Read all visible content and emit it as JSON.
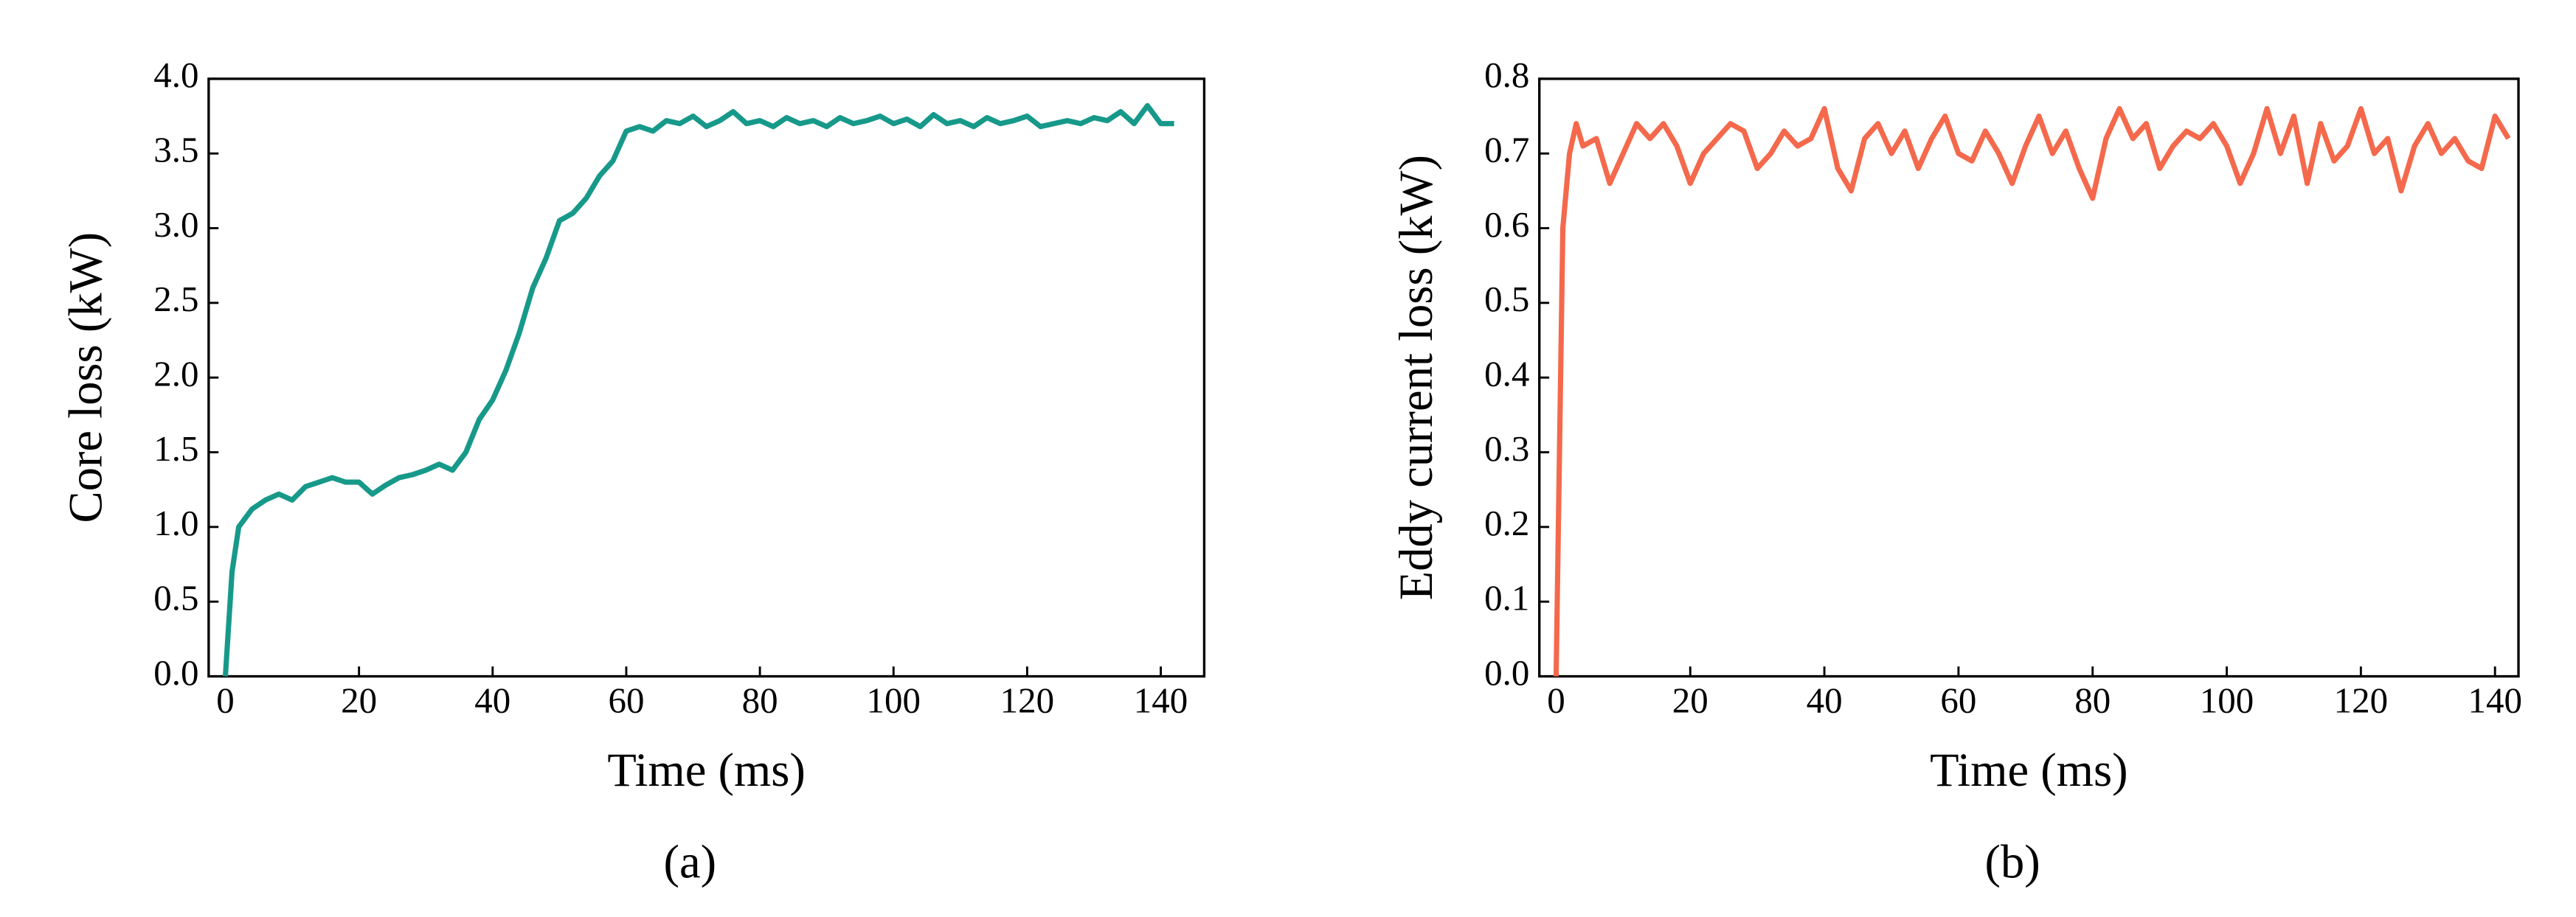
{
  "chart_data": [
    {
      "type": "line",
      "x_label": "Time (ms)",
      "y_label": "Core loss (kW)",
      "caption": "(a)",
      "color": "#17998a",
      "xlim": [
        -2.5,
        146.5
      ],
      "ylim": [
        0,
        4
      ],
      "xticks": [
        0,
        20,
        40,
        60,
        80,
        100,
        120,
        140
      ],
      "yticks": [
        {
          "value": 0,
          "label": "0.0"
        },
        {
          "value": 0.5,
          "label": "0.5"
        },
        {
          "value": 1,
          "label": "1.0"
        },
        {
          "value": 1.5,
          "label": "1.5"
        },
        {
          "value": 2,
          "label": "2.0"
        },
        {
          "value": 2.5,
          "label": "2.5"
        },
        {
          "value": 3,
          "label": "3.0"
        },
        {
          "value": 3.5,
          "label": "3.5"
        },
        {
          "value": 4,
          "label": "4.0"
        }
      ],
      "x": [
        0,
        1,
        2,
        4,
        6,
        8,
        10,
        12,
        14,
        16,
        18,
        20,
        22,
        24,
        26,
        28,
        30,
        32,
        34,
        36,
        38,
        40,
        42,
        44,
        46,
        48,
        50,
        52,
        54,
        56,
        58,
        60,
        62,
        64,
        66,
        68,
        70,
        72,
        74,
        76,
        78,
        80,
        82,
        84,
        86,
        88,
        90,
        92,
        94,
        96,
        98,
        100,
        102,
        104,
        106,
        108,
        110,
        112,
        114,
        116,
        118,
        120,
        122,
        124,
        126,
        128,
        130,
        132,
        134,
        136,
        138,
        140,
        142
      ],
      "values": [
        0,
        0.7,
        1.0,
        1.12,
        1.18,
        1.22,
        1.18,
        1.27,
        1.3,
        1.33,
        1.3,
        1.3,
        1.22,
        1.28,
        1.33,
        1.35,
        1.38,
        1.42,
        1.38,
        1.5,
        1.72,
        1.85,
        2.05,
        2.3,
        2.6,
        2.8,
        3.05,
        3.1,
        3.2,
        3.35,
        3.45,
        3.65,
        3.68,
        3.65,
        3.72,
        3.7,
        3.75,
        3.68,
        3.72,
        3.78,
        3.7,
        3.72,
        3.68,
        3.74,
        3.7,
        3.72,
        3.68,
        3.74,
        3.7,
        3.72,
        3.75,
        3.7,
        3.73,
        3.68,
        3.76,
        3.7,
        3.72,
        3.68,
        3.74,
        3.7,
        3.72,
        3.75,
        3.68,
        3.7,
        3.72,
        3.7,
        3.74,
        3.72,
        3.78,
        3.7,
        3.82,
        3.7,
        3.7
      ]
    },
    {
      "type": "line",
      "x_label": "Time (ms)",
      "y_label": "Eddy current loss (kW)",
      "caption": "(b)",
      "color": "#f4694c",
      "xlim": [
        -2.5,
        143.5
      ],
      "ylim": [
        0,
        0.8
      ],
      "xticks": [
        0,
        20,
        40,
        60,
        80,
        100,
        120,
        140
      ],
      "yticks": [
        {
          "value": 0,
          "label": "0.0"
        },
        0.1,
        0.2,
        0.3,
        0.4,
        0.5,
        0.6,
        0.7,
        0.8
      ],
      "x": [
        0,
        1,
        2,
        3,
        4,
        6,
        8,
        10,
        12,
        14,
        16,
        18,
        20,
        22,
        24,
        26,
        28,
        30,
        32,
        34,
        36,
        38,
        40,
        42,
        44,
        46,
        48,
        50,
        52,
        54,
        56,
        58,
        60,
        62,
        64,
        66,
        68,
        70,
        72,
        74,
        76,
        78,
        80,
        82,
        84,
        86,
        88,
        90,
        92,
        94,
        96,
        98,
        100,
        102,
        104,
        106,
        108,
        110,
        112,
        114,
        116,
        118,
        120,
        122,
        124,
        126,
        128,
        130,
        132,
        134,
        136,
        138,
        140,
        142
      ],
      "values": [
        0,
        0.6,
        0.7,
        0.74,
        0.71,
        0.72,
        0.66,
        0.7,
        0.74,
        0.72,
        0.74,
        0.71,
        0.66,
        0.7,
        0.72,
        0.74,
        0.73,
        0.68,
        0.7,
        0.73,
        0.71,
        0.72,
        0.76,
        0.68,
        0.65,
        0.72,
        0.74,
        0.7,
        0.73,
        0.68,
        0.72,
        0.75,
        0.7,
        0.69,
        0.73,
        0.7,
        0.66,
        0.71,
        0.75,
        0.7,
        0.73,
        0.68,
        0.64,
        0.72,
        0.76,
        0.72,
        0.74,
        0.68,
        0.71,
        0.73,
        0.72,
        0.74,
        0.71,
        0.66,
        0.7,
        0.76,
        0.7,
        0.75,
        0.66,
        0.74,
        0.69,
        0.71,
        0.76,
        0.7,
        0.72,
        0.65,
        0.71,
        0.74,
        0.7,
        0.72,
        0.69,
        0.68,
        0.75,
        0.72
      ]
    }
  ]
}
